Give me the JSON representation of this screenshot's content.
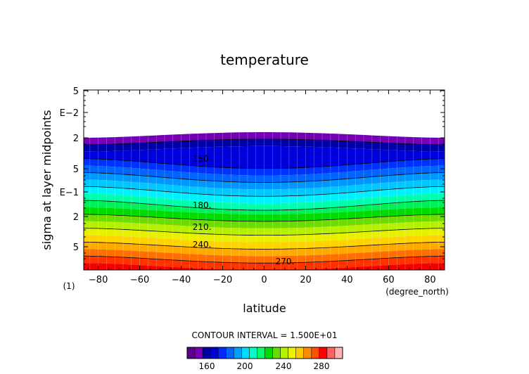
{
  "chart_data": {
    "type": "heatmap",
    "title": "temperature",
    "xlabel": "latitude",
    "ylabel": "sigma at layer midpoints",
    "x_units": "(degree_north)",
    "y_exponent_note": "(1)",
    "x_range": [
      -87,
      87
    ],
    "x_ticks": [
      -80,
      -60,
      -40,
      -20,
      0,
      20,
      40,
      60,
      80
    ],
    "y_scale": "log",
    "y_tick_labels": [
      "5",
      "E−2",
      "2",
      "5",
      "E−1",
      "2",
      "5"
    ],
    "contour_interval_text": "CONTOUR INTERVAL = 1.500E+01",
    "contour_labels": [
      "150.",
      "180.",
      "210.",
      "240.",
      "270."
    ],
    "colorbar_ticks": [
      "160",
      "200",
      "240",
      "280"
    ],
    "colorbar_colors": [
      "#5a008c",
      "#7800b4",
      "#0000a0",
      "#0000d2",
      "#0028ff",
      "#0064ff",
      "#00a0ff",
      "#00dcff",
      "#00ffc8",
      "#00ff64",
      "#00dc00",
      "#64dc00",
      "#b4f000",
      "#f0f000",
      "#ffc800",
      "#ff8c00",
      "#ff5000",
      "#ff0000",
      "#ff6464",
      "#ffb4b4"
    ],
    "band_colors": [
      "#7300b4",
      "#0000aa",
      "#0000dc",
      "#0032ff",
      "#0064ff",
      "#0096ff",
      "#00c8ff",
      "#00f0ff",
      "#00ffaa",
      "#00f05a",
      "#00dc00",
      "#6edc00",
      "#b4f000",
      "#e6f000",
      "#ffd200",
      "#ffaa00",
      "#ff6e00",
      "#ff3200",
      "#f00000"
    ]
  }
}
